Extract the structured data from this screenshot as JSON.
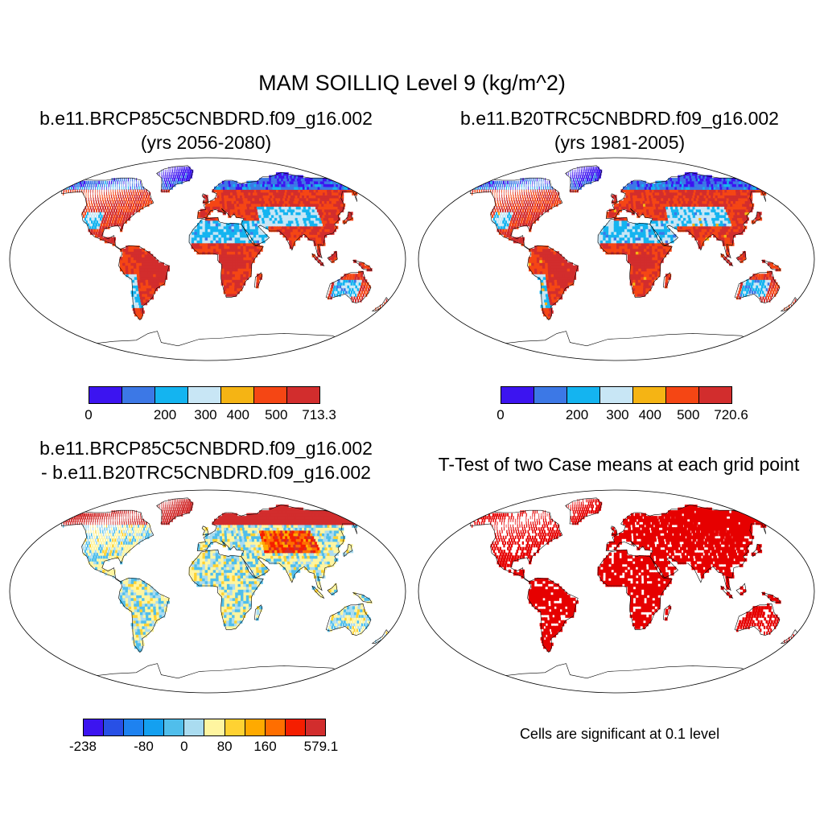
{
  "figure": {
    "title": "MAM SOILLIQ Level 9 (kg/m^2)",
    "variable": "SOILLIQ",
    "units": "kg/m^2"
  },
  "panels": [
    {
      "title_line1": "b.e11.BRCP85C5CNBDRD.f09_g16.002",
      "title_line2": "(yrs 2056-2080)",
      "colorbar": {
        "colors": [
          "#3c14f0",
          "#3c78e6",
          "#14b4f0",
          "#c8e6f5",
          "#f5b414",
          "#f54614",
          "#d22d2d"
        ],
        "tick_labels": [
          "0",
          "200",
          "300",
          "400",
          "500",
          "713.3"
        ]
      }
    },
    {
      "title_line1": "b.e11.B20TRC5CNBDRD.f09_g16.002",
      "title_line2": "(yrs 1981-2005)",
      "colorbar": {
        "colors": [
          "#3c14f0",
          "#3c78e6",
          "#14b4f0",
          "#c8e6f5",
          "#f5b414",
          "#f54614",
          "#d22d2d"
        ],
        "tick_labels": [
          "0",
          "200",
          "300",
          "400",
          "500",
          "720.6"
        ]
      }
    },
    {
      "title_line1": "b.e11.BRCP85C5CNBDRD.f09_g16.002",
      "title_line2": "- b.e11.B20TRC5CNBDRD.f09_g16.002",
      "colorbar": {
        "colors": [
          "#3c14f0",
          "#2850e6",
          "#1e82f0",
          "#14a0f0",
          "#50beeb",
          "#aadcf0",
          "#fff5a0",
          "#ffd232",
          "#ffaa00",
          "#ff6e00",
          "#f51e00",
          "#d22d2d"
        ],
        "tick_labels": [
          "-238",
          "-80",
          "0",
          "80",
          "160",
          "579.1"
        ]
      }
    },
    {
      "title": "T-Test of two Case means at each grid point",
      "note": "Cells are significant at 0.1 level",
      "significant_color": "#e60000"
    }
  ]
}
